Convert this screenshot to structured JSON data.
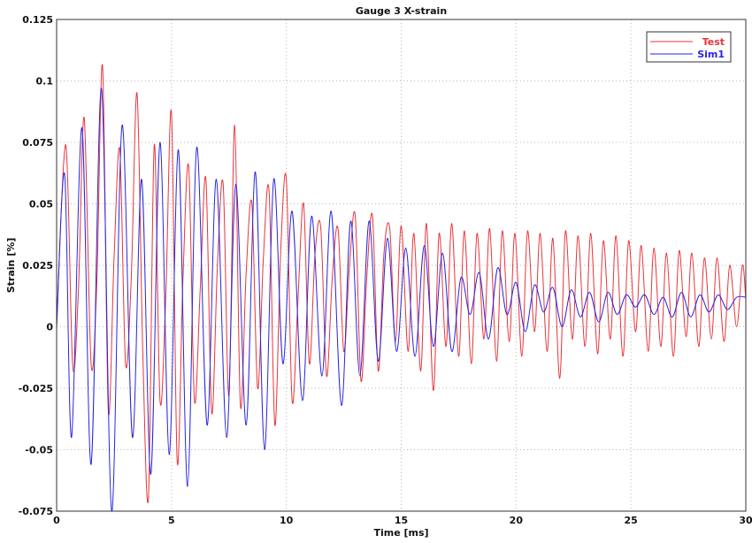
{
  "chart_data": {
    "type": "line",
    "title": "Gauge 3 X-strain",
    "xlabel": "Time [ms]",
    "ylabel": "Strain [%]",
    "xlim": [
      0,
      30
    ],
    "ylim": [
      -0.075,
      0.125
    ],
    "x_ticks": [
      "0",
      "5",
      "10",
      "15",
      "20",
      "25",
      "30"
    ],
    "y_ticks": [
      "-0.075",
      "-0.05",
      "-0.025",
      "0",
      "0.025",
      "0.05",
      "0.075",
      "0.1",
      "0.125"
    ],
    "grid": true,
    "legend_position": "top-right",
    "series": [
      {
        "name": "Test",
        "color": "#e8343a",
        "x": [
          0,
          0.4,
          0.7,
          0.95,
          1.2,
          1.5,
          1.75,
          2.0,
          2.25,
          2.5,
          2.75,
          3.0,
          3.25,
          3.5,
          3.75,
          4.0,
          4.25,
          4.5,
          4.75,
          5.0,
          5.25,
          5.5,
          5.75,
          6.0,
          6.25,
          6.5,
          6.75,
          7.0,
          7.25,
          7.5,
          7.75,
          8.0,
          8.25,
          8.5,
          8.75,
          9.0,
          9.25,
          9.5,
          9.75,
          10.0,
          10.25,
          10.5,
          10.75,
          11.0,
          11.25,
          11.5,
          11.75,
          12.0,
          12.25,
          12.5,
          12.75,
          13.0,
          13.25,
          13.5,
          13.75,
          14.0,
          14.25,
          14.5,
          14.75,
          15.0,
          15.3,
          15.55,
          15.85,
          16.1,
          16.4,
          16.65,
          16.95,
          17.2,
          17.5,
          17.75,
          18.05,
          18.3,
          18.6,
          18.85,
          19.15,
          19.4,
          19.7,
          19.95,
          20.25,
          20.5,
          20.8,
          21.05,
          21.35,
          21.6,
          21.9,
          22.15,
          22.45,
          22.7,
          23.0,
          23.25,
          23.55,
          23.8,
          24.1,
          24.35,
          24.65,
          24.9,
          25.2,
          25.45,
          25.75,
          26.0,
          26.3,
          26.55,
          26.85,
          27.1,
          27.4,
          27.65,
          27.95,
          28.2,
          28.5,
          28.75,
          29.05,
          29.3,
          29.6,
          29.85,
          30.0
        ],
        "y": [
          0,
          0.074,
          -0.016,
          0.015,
          0.085,
          -0.015,
          0.018,
          0.106,
          -0.034,
          0.028,
          0.072,
          -0.015,
          0.02,
          0.095,
          -0.01,
          -0.069,
          0.074,
          -0.03,
          0.012,
          0.087,
          -0.055,
          0.02,
          0.065,
          -0.03,
          0.015,
          0.06,
          -0.035,
          0.025,
          0.058,
          -0.028,
          0.082,
          -0.032,
          0.022,
          0.05,
          -0.025,
          0.028,
          0.055,
          -0.04,
          0.03,
          0.06,
          -0.03,
          0.01,
          0.05,
          -0.015,
          0.03,
          0.04,
          -0.02,
          0.02,
          0.04,
          -0.01,
          0.025,
          0.045,
          -0.022,
          0.02,
          0.045,
          -0.018,
          0.03,
          0.04,
          -0.006,
          0.041,
          -0.01,
          0.038,
          -0.018,
          0.042,
          -0.026,
          0.038,
          -0.008,
          0.042,
          -0.012,
          0.039,
          -0.015,
          0.038,
          -0.005,
          0.04,
          -0.014,
          0.039,
          -0.006,
          0.038,
          -0.012,
          0.039,
          -0.002,
          0.038,
          -0.01,
          0.036,
          -0.021,
          0.039,
          -0.005,
          0.037,
          -0.008,
          0.038,
          -0.011,
          0.035,
          -0.005,
          0.037,
          -0.012,
          0.035,
          -0.002,
          0.033,
          -0.01,
          0.032,
          -0.008,
          0.03,
          -0.012,
          0.031,
          -0.004,
          0.03,
          -0.008,
          0.028,
          -0.005,
          0.028,
          -0.006,
          0.025,
          0,
          0.025,
          0.011
        ]
      },
      {
        "name": "Sim1",
        "color": "#2626e0",
        "x": [
          0,
          0.35,
          0.65,
          1.1,
          1.5,
          1.95,
          2.4,
          2.85,
          3.3,
          3.7,
          4.1,
          4.5,
          4.9,
          5.3,
          5.7,
          6.1,
          6.55,
          6.95,
          7.4,
          7.8,
          8.25,
          8.65,
          9.05,
          9.45,
          9.85,
          10.25,
          10.7,
          11.1,
          11.55,
          11.95,
          12.4,
          12.8,
          13.2,
          13.6,
          14.0,
          14.4,
          14.8,
          15.2,
          15.6,
          16.0,
          16.4,
          16.8,
          17.2,
          17.6,
          18.0,
          18.4,
          18.8,
          19.2,
          19.6,
          20.0,
          20.4,
          20.8,
          21.2,
          21.6,
          22.0,
          22.4,
          22.8,
          23.2,
          23.6,
          24.0,
          24.4,
          24.8,
          25.2,
          25.6,
          26.0,
          26.4,
          26.8,
          27.2,
          27.6,
          28.0,
          28.4,
          28.8,
          29.2,
          29.6,
          30.0
        ],
        "y": [
          0,
          0.062,
          -0.045,
          0.081,
          -0.056,
          0.097,
          -0.075,
          0.082,
          -0.045,
          0.06,
          -0.06,
          0.075,
          -0.052,
          0.072,
          -0.065,
          0.073,
          -0.04,
          0.06,
          -0.045,
          0.058,
          -0.04,
          0.063,
          -0.05,
          0.06,
          -0.015,
          0.047,
          -0.03,
          0.045,
          -0.02,
          0.047,
          -0.032,
          0.043,
          -0.02,
          0.043,
          -0.014,
          0.036,
          -0.01,
          0.032,
          -0.012,
          0.033,
          -0.008,
          0.03,
          -0.01,
          0.02,
          0.005,
          0.022,
          -0.005,
          0.024,
          0.005,
          0.018,
          -0.002,
          0.017,
          0.006,
          0.016,
          0,
          0.015,
          0.004,
          0.014,
          0.002,
          0.014,
          0.005,
          0.013,
          0.008,
          0.013,
          0.005,
          0.012,
          0.004,
          0.014,
          0.004,
          0.013,
          0.006,
          0.013,
          0.007,
          0.012,
          0.012
        ]
      }
    ]
  }
}
